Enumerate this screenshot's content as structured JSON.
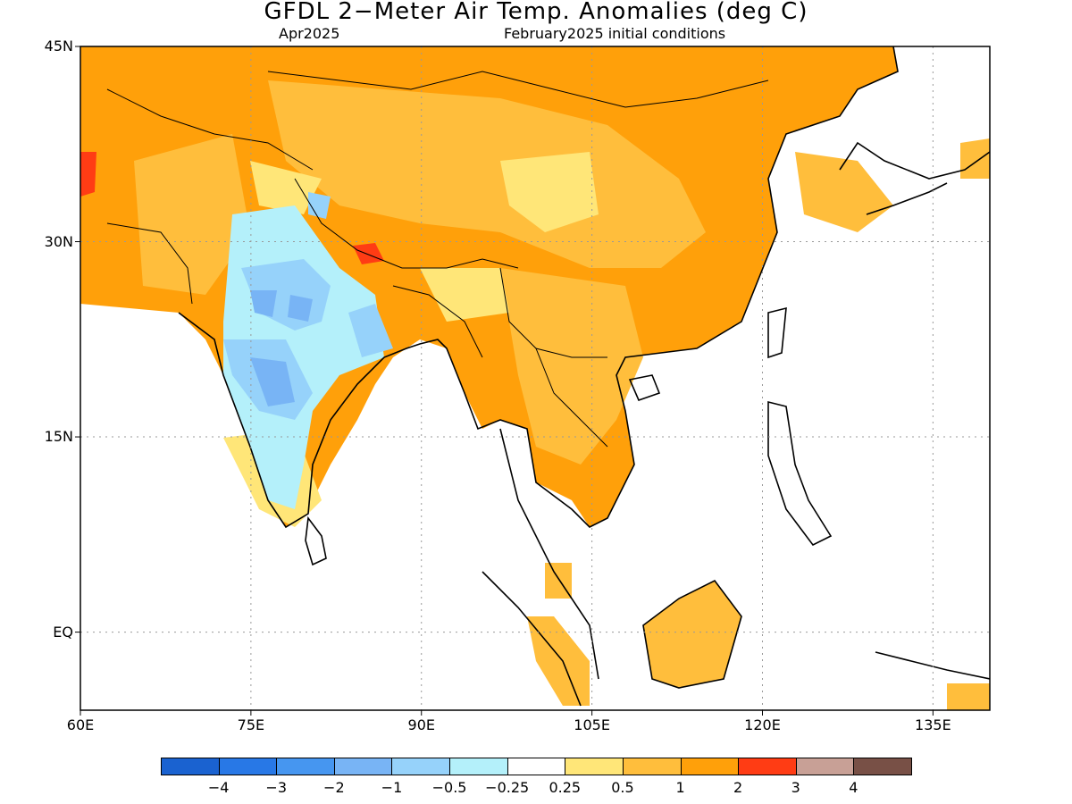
{
  "title": "GFDL 2−Meter Air Temp. Anomalies (deg C)",
  "subtitle_left": "Apr2025",
  "subtitle_right": "February2025 initial conditions",
  "map": {
    "lon_range": [
      60,
      140
    ],
    "lat_range": [
      -6,
      45
    ],
    "lat_ticks": [
      {
        "value": 45,
        "label": "45N"
      },
      {
        "value": 30,
        "label": "30N"
      },
      {
        "value": 15,
        "label": "15N"
      },
      {
        "value": 0,
        "label": "EQ"
      }
    ],
    "lon_ticks": [
      {
        "value": 60,
        "label": "60E"
      },
      {
        "value": 75,
        "label": "75E"
      },
      {
        "value": 90,
        "label": "90E"
      },
      {
        "value": 105,
        "label": "105E"
      },
      {
        "value": 120,
        "label": "120E"
      },
      {
        "value": 135,
        "label": "135E"
      }
    ],
    "grid": true
  },
  "legend": {
    "colors": [
      "#1a62d0",
      "#2878e6",
      "#4696f0",
      "#78b4f5",
      "#96d2fa",
      "#b4f0fa",
      "#ffffff",
      "#ffe678",
      "#ffbe3c",
      "#ffa00a",
      "#ff3c14",
      "#c8a096",
      "#785046"
    ],
    "labels": [
      "−4",
      "−3",
      "−2",
      "−1",
      "−0.5",
      "−0.25",
      "0.25",
      "0.5",
      "1",
      "2",
      "3",
      "4"
    ]
  }
}
